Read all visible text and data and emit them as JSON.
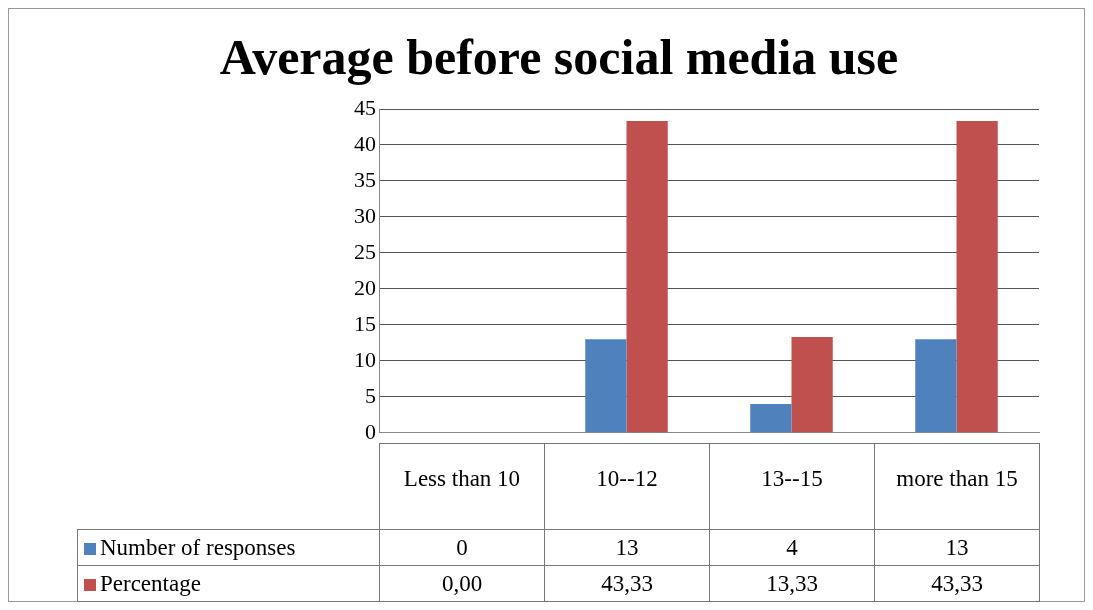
{
  "chart_data": {
    "type": "bar",
    "title": "Average before social media use",
    "categories": [
      "Less than 10",
      "10--12",
      "13--15",
      "more than 15"
    ],
    "series": [
      {
        "name": "Number of responses",
        "color": "#4f81bd",
        "values": [
          0,
          13,
          4,
          13
        ],
        "value_labels": [
          "0",
          "13",
          "4",
          "13"
        ]
      },
      {
        "name": "Percentage",
        "color": "#c0504d",
        "values": [
          0,
          43.33,
          13.33,
          43.33
        ],
        "value_labels": [
          "0,00",
          "43,33",
          "13,33",
          "43,33"
        ]
      }
    ],
    "ylim": [
      0,
      45
    ],
    "yticks": [
      0,
      5,
      10,
      15,
      20,
      25,
      30,
      35,
      40,
      45
    ],
    "grid": "y",
    "legend": "bottom"
  }
}
